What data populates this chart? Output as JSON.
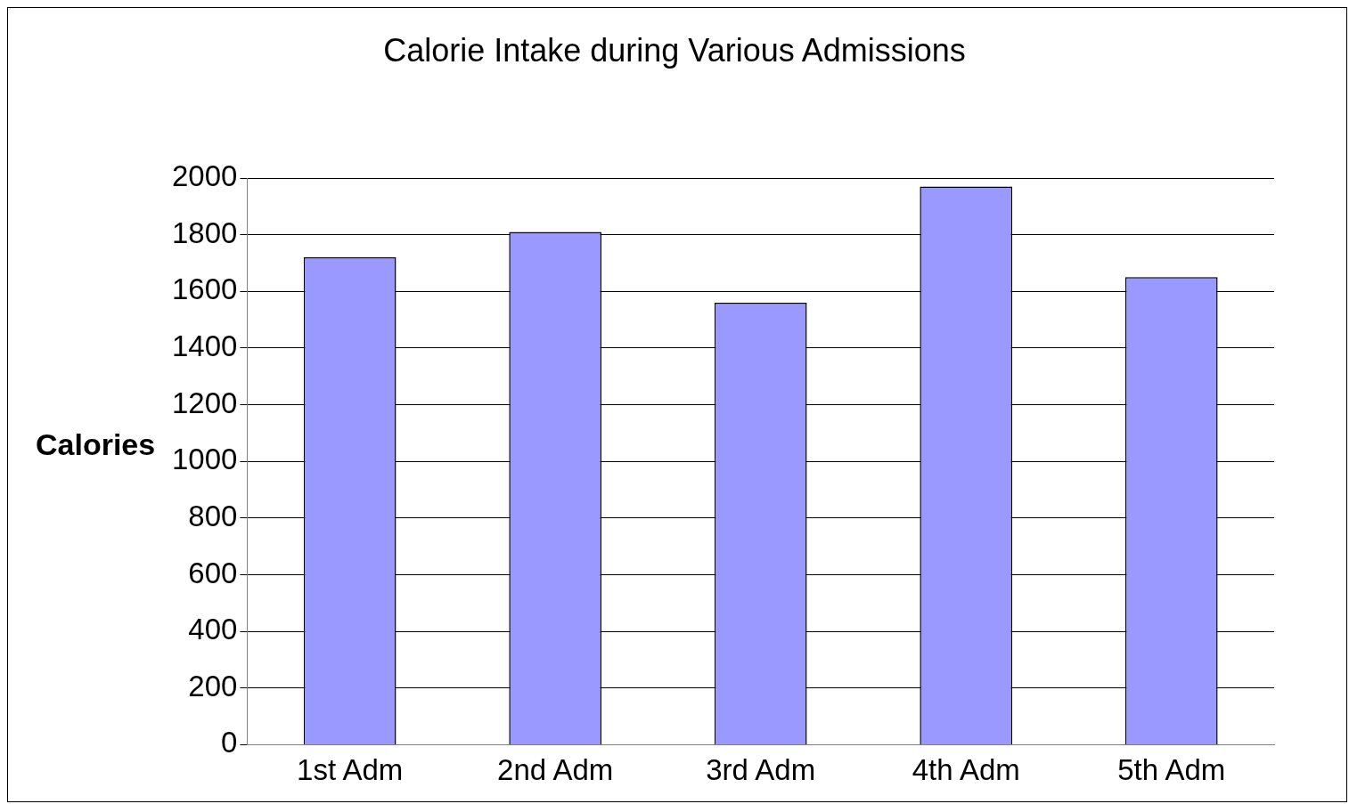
{
  "chart_data": {
    "type": "bar",
    "title": "Calorie Intake during Various Admissions",
    "ylabel": "Calories",
    "categories": [
      "1st Adm",
      "2nd Adm",
      "3rd Adm",
      "4th Adm",
      "5th Adm"
    ],
    "values": [
      1720,
      1810,
      1560,
      1970,
      1650
    ],
    "color": "#9999ff",
    "ylim": [
      0,
      2000
    ],
    "yticks": [
      0,
      200,
      400,
      600,
      800,
      1000,
      1200,
      1400,
      1600,
      1800,
      2000
    ],
    "grid": "y",
    "legend": false
  }
}
